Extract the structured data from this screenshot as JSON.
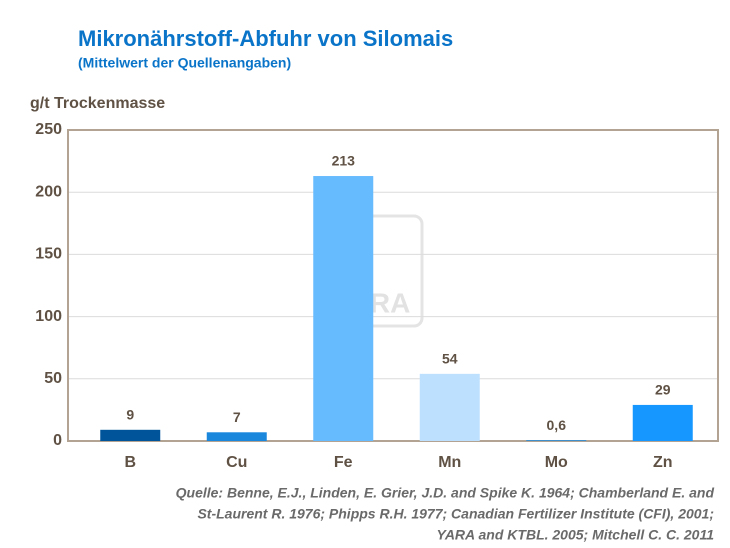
{
  "chart_data": {
    "type": "bar",
    "title": "Mikronährstoff-Abfuhr von Silomais",
    "subtitle": "(Mittelwert der Quellenangaben)",
    "y_axis_label": "g/t Trockenmasse",
    "watermark": "YARA",
    "categories": [
      "B",
      "Cu",
      "Fe",
      "Mn",
      "Mo",
      "Zn"
    ],
    "values": [
      9,
      7,
      213,
      54,
      0.6,
      29
    ],
    "value_labels": [
      "9",
      "7",
      "213",
      "54",
      "0,6",
      "29"
    ],
    "colors": [
      "#00559a",
      "#1a87dd",
      "#66bbff",
      "#bde0ff",
      "#1a87dd",
      "#1597ff"
    ],
    "ylim": [
      0,
      250
    ],
    "yticks": [
      0,
      50,
      100,
      150,
      200,
      250
    ],
    "grid": true,
    "source": [
      "Quelle: Benne, E.J., Linden, E. Grier, J.D. and Spike K. 1964; Chamberland  E. and",
      "St-Laurent R. 1976; Phipps R.H. 1977; Canadian Fertilizer Institute (CFI), 2001;",
      "YARA and KTBL. 2005; Mitchell C. C. 2011"
    ]
  }
}
